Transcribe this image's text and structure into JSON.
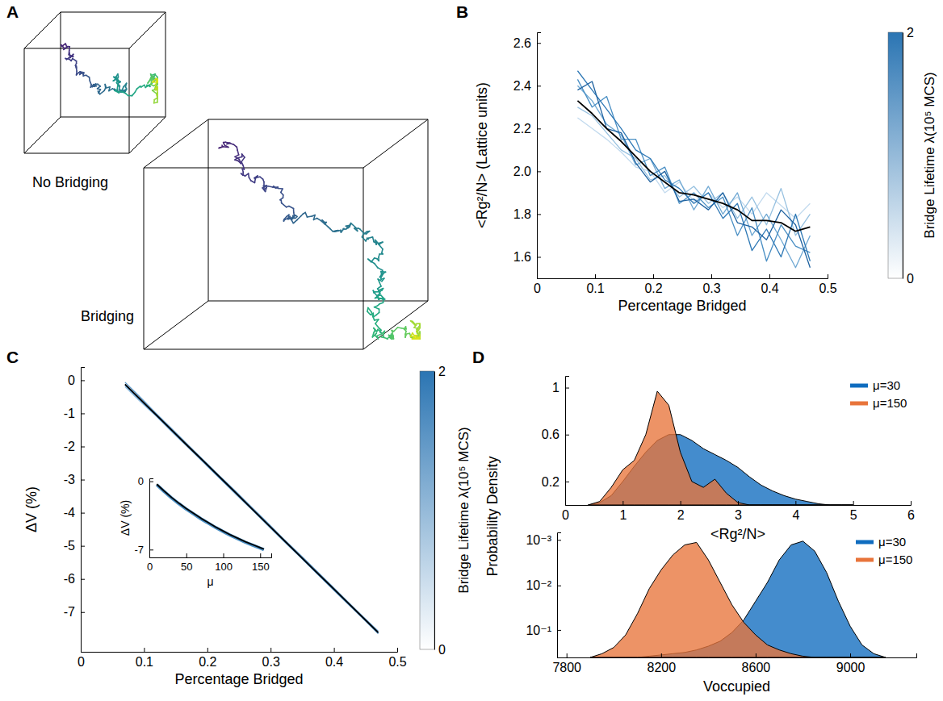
{
  "chart_data": [
    {
      "type": "illustration",
      "panel": "A",
      "annotations": [
        "No Bridging",
        "Bridging"
      ]
    },
    {
      "type": "line",
      "panel": "B",
      "x_label": "Percentage Bridged",
      "y_label": "<Rg²/N> (Lattice units)",
      "x": [
        0.07,
        0.095,
        0.12,
        0.145,
        0.17,
        0.195,
        0.22,
        0.245,
        0.27,
        0.295,
        0.32,
        0.345,
        0.37,
        0.395,
        0.42,
        0.445,
        0.47
      ],
      "xlim": [
        0,
        0.5
      ],
      "xticks": [
        0,
        0.1,
        0.2,
        0.3,
        0.4,
        0.5
      ],
      "ylim": [
        1.5,
        2.65
      ],
      "yticks": [
        1.6,
        1.8,
        {
          "value": 2,
          "label": "2.0"
        },
        2.2,
        2.4,
        2.6
      ],
      "series": [
        {
          "color": "#c2daee",
          "values": [
            2.25,
            2.2,
            2.15,
            2.09,
            2.02,
            2.0,
            1.9,
            1.95,
            1.86,
            1.9,
            1.83,
            1.88,
            1.8,
            1.9,
            1.84,
            1.78,
            1.85
          ]
        },
        {
          "color": "#97c1e0",
          "values": [
            2.3,
            2.26,
            2.18,
            2.1,
            2.06,
            1.96,
            1.98,
            1.88,
            1.93,
            1.85,
            1.9,
            1.78,
            1.88,
            1.75,
            1.92,
            1.7,
            1.8
          ]
        },
        {
          "color": "#6fa8d3",
          "values": [
            2.4,
            2.33,
            2.22,
            2.17,
            2.03,
            2.06,
            1.92,
            1.96,
            1.82,
            1.93,
            1.8,
            1.9,
            1.7,
            1.8,
            1.68,
            1.55,
            1.7
          ]
        },
        {
          "color": "#4a8fc4",
          "values": [
            2.43,
            2.3,
            2.35,
            2.15,
            2.15,
            1.98,
            2.02,
            1.85,
            1.9,
            1.83,
            1.88,
            1.7,
            1.83,
            1.58,
            1.75,
            1.65,
            1.62
          ]
        },
        {
          "color": "#2e78b5",
          "values": [
            2.47,
            2.38,
            2.29,
            2.2,
            2.1,
            2.06,
            1.96,
            1.92,
            1.85,
            1.9,
            1.78,
            1.85,
            1.63,
            1.73,
            1.6,
            1.8,
            1.58
          ]
        },
        {
          "color": "#1f62a0",
          "values": [
            2.38,
            2.42,
            2.2,
            2.18,
            2.04,
            1.95,
            2.0,
            1.86,
            1.87,
            1.82,
            1.9,
            1.76,
            1.74,
            1.68,
            1.82,
            1.75,
            1.55
          ]
        },
        {
          "color": "#000000",
          "values": [
            2.33,
            2.27,
            2.2,
            2.14,
            2.07,
            2.0,
            1.95,
            1.9,
            1.89,
            1.87,
            1.85,
            1.82,
            1.77,
            1.77,
            1.76,
            1.72,
            1.74
          ]
        }
      ],
      "colorbar": {
        "label": "Bridge Lifetime λ(10⁵ MCS)",
        "range": [
          0,
          2
        ],
        "ticks": [
          0,
          2
        ]
      }
    },
    {
      "type": "line",
      "panel": "C",
      "x_label": "Percentage Bridged",
      "y_label": "ΔV (%)",
      "x": [
        0.07,
        0.095,
        0.12,
        0.145,
        0.17,
        0.195,
        0.22,
        0.245,
        0.27,
        0.295,
        0.32,
        0.345,
        0.37,
        0.395,
        0.42,
        0.445,
        0.47
      ],
      "xlim": [
        0,
        0.5
      ],
      "xticks": [
        0,
        0.1,
        0.2,
        0.3,
        0.4,
        0.5
      ],
      "ylim": [
        -8.2,
        0.4
      ],
      "yticks": [
        -7,
        -6,
        -5,
        -4,
        -3,
        -2,
        -1,
        0
      ],
      "series": [
        {
          "color": "#9cc3e2",
          "values": [
            -0.2,
            -0.66,
            -1.1,
            -1.58,
            -2.04,
            -2.5,
            -2.97,
            -3.45,
            -3.9,
            -4.38,
            -4.85,
            -5.3,
            -5.78,
            -6.25,
            -6.72,
            -7.18,
            -7.66
          ]
        },
        {
          "color": "#5a99cc",
          "values": [
            -0.06,
            -0.53,
            -1.02,
            -1.49,
            -1.96,
            -2.43,
            -2.9,
            -3.36,
            -3.83,
            -4.3,
            -4.78,
            -5.24,
            -5.71,
            -6.18,
            -6.65,
            -7.12,
            -7.58
          ]
        },
        {
          "color": "#2a72b0",
          "values": [
            -0.15,
            -0.62,
            -1.08,
            -1.55,
            -2.02,
            -2.49,
            -2.96,
            -3.42,
            -3.89,
            -4.36,
            -4.83,
            -5.3,
            -5.77,
            -6.24,
            -6.7,
            -7.17,
            -7.64
          ]
        },
        {
          "color": "#000000",
          "values": [
            -0.12,
            -0.59,
            -1.06,
            -1.53,
            -2.0,
            -2.46,
            -2.93,
            -3.4,
            -3.87,
            -4.34,
            -4.81,
            -5.28,
            -5.75,
            -6.21,
            -6.68,
            -7.15,
            -7.62
          ]
        }
      ],
      "colorbar": {
        "label": "Bridge Lifetime λ(10⁵ MCS)",
        "range": [
          0,
          2
        ],
        "ticks": [
          0,
          2
        ]
      },
      "inset": {
        "type": "line",
        "x_label": "μ",
        "y_label": "ΔV (%)",
        "x": [
          10,
          20,
          30,
          40,
          50,
          60,
          70,
          80,
          90,
          100,
          110,
          120,
          130,
          140,
          150,
          155
        ],
        "xlim": [
          0,
          165
        ],
        "xticks": [
          0,
          50,
          100,
          150
        ],
        "ylim": [
          -7.8,
          0.3
        ],
        "yticks": [
          -7,
          0
        ],
        "series": [
          {
            "color": "#4a8fc4",
            "values": [
              -0.35,
              -1.05,
              -1.7,
              -2.3,
              -2.85,
              -3.35,
              -3.85,
              -4.3,
              -4.75,
              -5.15,
              -5.55,
              -5.9,
              -6.25,
              -6.55,
              -6.85,
              -7.0
            ]
          },
          {
            "color": "#000000",
            "values": [
              -0.3,
              -1.0,
              -1.65,
              -2.25,
              -2.8,
              -3.3,
              -3.8,
              -4.25,
              -4.7,
              -5.1,
              -5.5,
              -5.85,
              -6.2,
              -6.5,
              -6.8,
              -6.95
            ]
          }
        ]
      }
    },
    {
      "type": "area",
      "panel": "D",
      "x_label": "<Rg²/N>",
      "y_label": "Probability Density",
      "x": [
        0.4,
        0.6,
        0.8,
        1.0,
        1.2,
        1.4,
        1.6,
        1.8,
        2.0,
        2.2,
        2.4,
        2.6,
        2.8,
        3.0,
        3.2,
        3.4,
        3.6,
        3.8,
        4.0,
        4.2,
        4.4,
        4.6,
        4.8,
        5.0
      ],
      "xlim": [
        0,
        6
      ],
      "xticks": [
        0,
        1,
        2,
        3,
        4,
        5,
        6
      ],
      "ylim": [
        0,
        1.1
      ],
      "yticks": [
        0.2,
        0.6,
        1
      ],
      "legend": "upper right",
      "series": [
        {
          "name": "μ=30",
          "color": "#0f6cbf",
          "values": [
            0,
            0.02,
            0.08,
            0.2,
            0.33,
            0.45,
            0.55,
            0.6,
            0.6,
            0.55,
            0.48,
            0.43,
            0.38,
            0.32,
            0.24,
            0.17,
            0.12,
            0.08,
            0.05,
            0.03,
            0.01,
            0,
            0,
            0
          ]
        },
        {
          "name": "μ=150",
          "color": "#e8743b",
          "values": [
            0,
            0.03,
            0.15,
            0.3,
            0.38,
            0.6,
            0.97,
            0.85,
            0.45,
            0.2,
            0.15,
            0.22,
            0.1,
            0.02,
            0,
            0,
            0,
            0,
            0,
            0,
            0,
            0,
            0,
            0
          ]
        }
      ]
    },
    {
      "type": "area",
      "x_label": "Voccupied",
      "x": [
        7900,
        7950,
        8000,
        8050,
        8100,
        8150,
        8200,
        8250,
        8300,
        8350,
        8400,
        8450,
        8500,
        8550,
        8600,
        8650,
        8700,
        8750,
        8800,
        8850,
        8900,
        8950,
        9000,
        9050,
        9100,
        9150
      ],
      "xlim": [
        7760,
        9280
      ],
      "xticks": [
        7800,
        8200,
        8600,
        9000
      ],
      "ylim": [
        0,
        1
      ],
      "yticks": [
        {
          "value": 0.22,
          "label": "10⁻¹"
        },
        {
          "value": 0.576,
          "label": "10⁻²"
        },
        {
          "value": 0.94,
          "label": "10⁻³"
        }
      ],
      "legend": "upper right",
      "series": [
        {
          "name": "μ=30",
          "color": "#0f6cbf",
          "values": [
            0,
            0,
            0,
            0,
            0,
            0.01,
            0.02,
            0.03,
            0.04,
            0.06,
            0.09,
            0.13,
            0.2,
            0.3,
            0.45,
            0.6,
            0.78,
            0.9,
            0.93,
            0.85,
            0.68,
            0.45,
            0.25,
            0.1,
            0.03,
            0
          ]
        },
        {
          "name": "μ=150",
          "color": "#e8743b",
          "values": [
            0,
            0.03,
            0.08,
            0.18,
            0.35,
            0.55,
            0.7,
            0.82,
            0.9,
            0.92,
            0.78,
            0.6,
            0.42,
            0.28,
            0.18,
            0.1,
            0.06,
            0.03,
            0.01,
            0,
            0,
            0,
            0,
            0,
            0,
            0
          ]
        }
      ]
    }
  ]
}
